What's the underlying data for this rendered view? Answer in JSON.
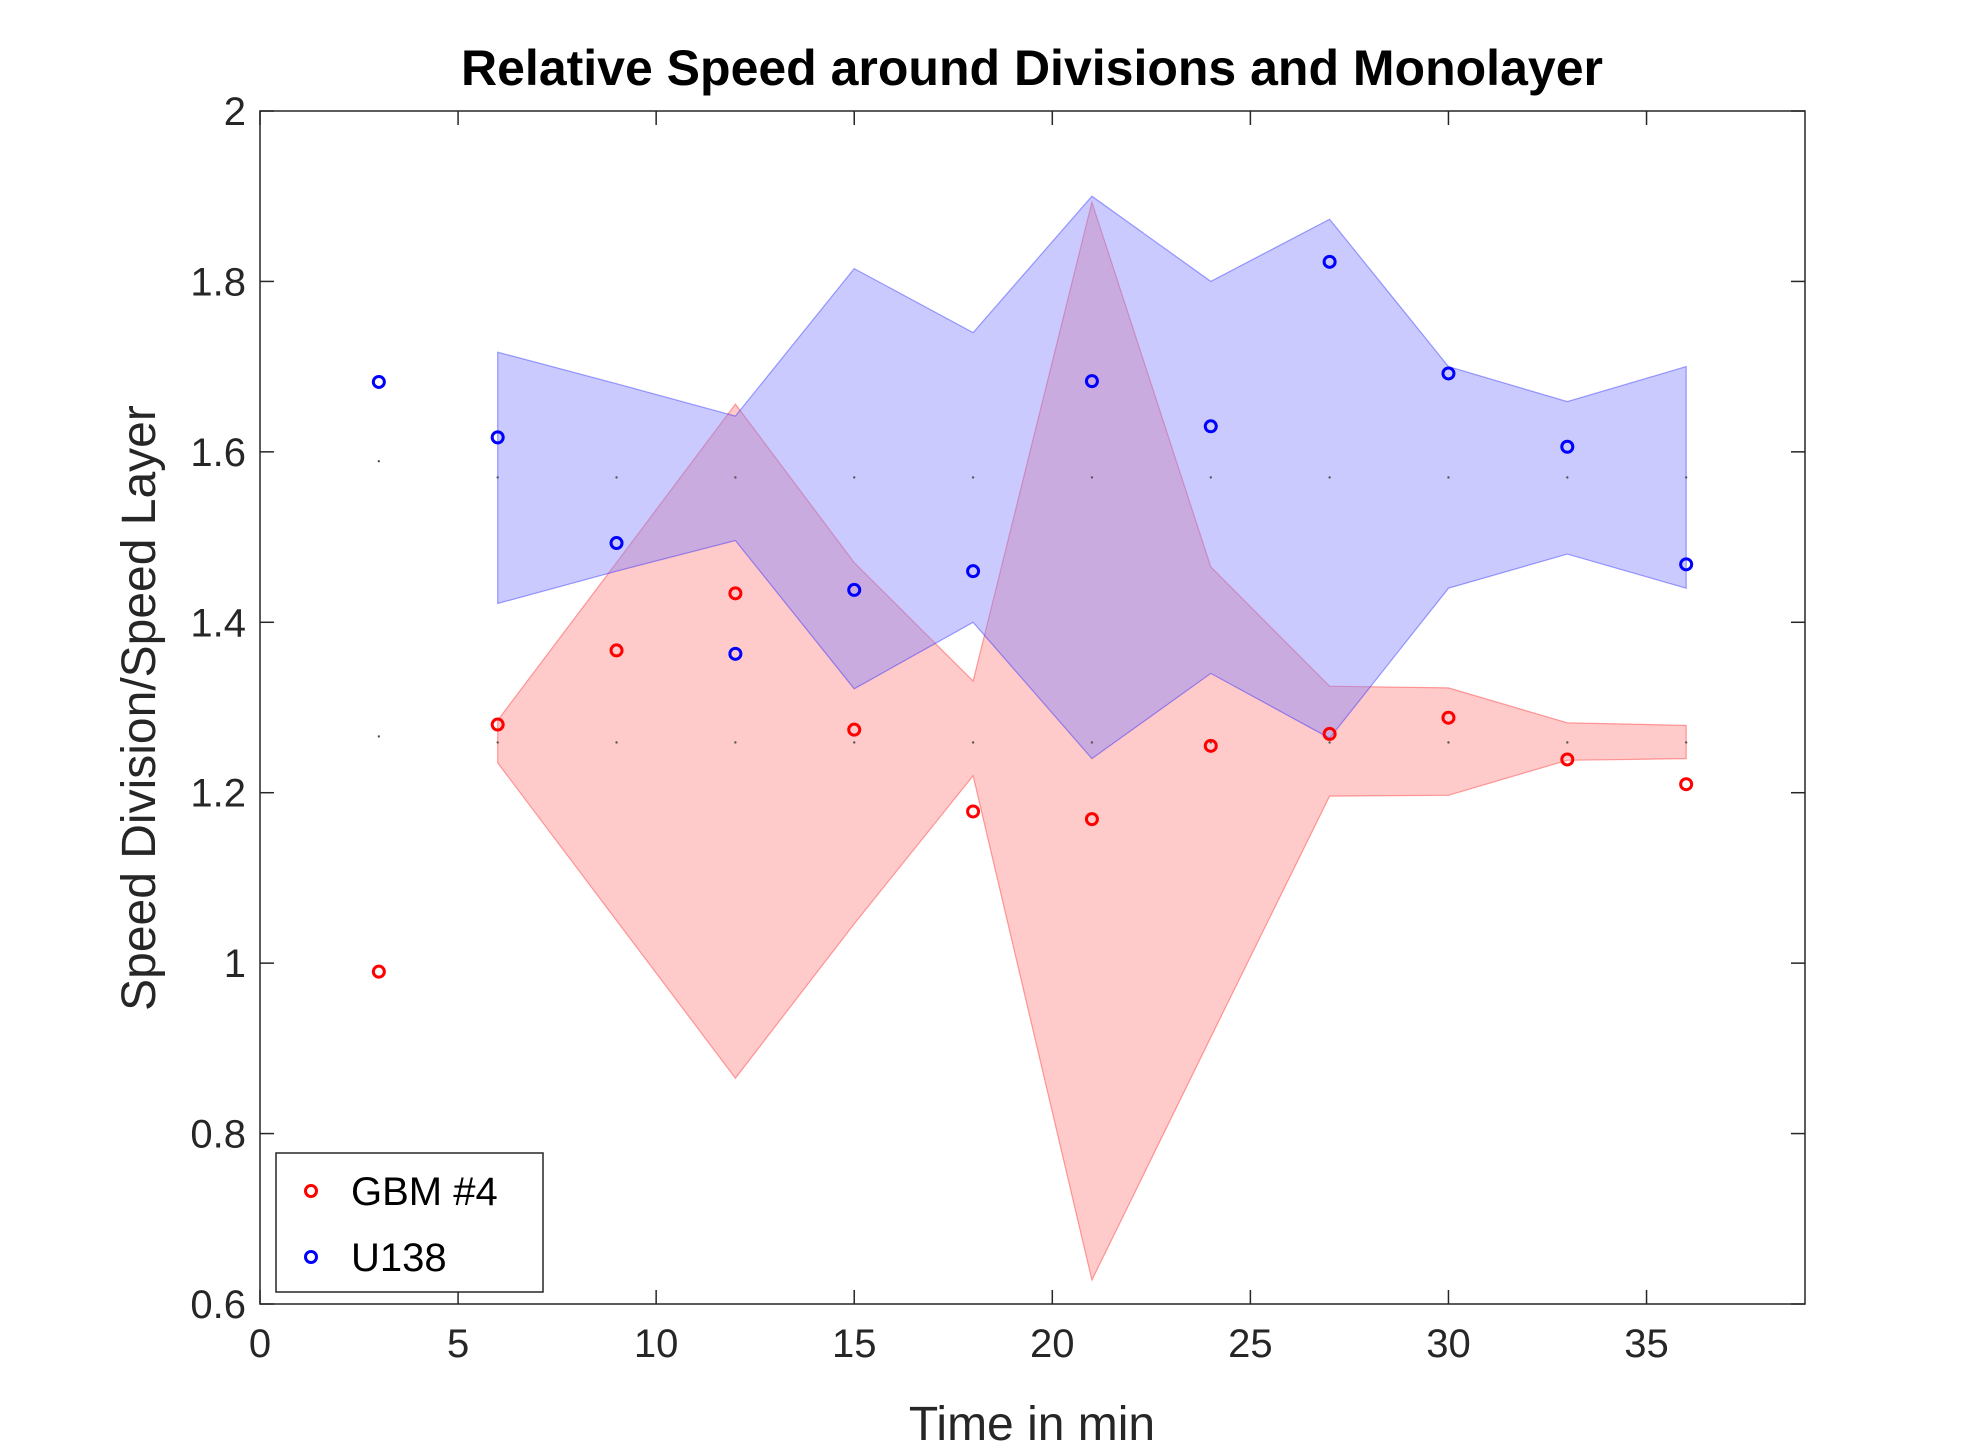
{
  "chart_data": {
    "type": "scatter",
    "title": "Relative Speed around Divisions and Monolayer",
    "xlabel": "Time in min",
    "ylabel": "Speed Division/Speed Layer",
    "xlim": [
      0,
      39
    ],
    "ylim": [
      0.6,
      2
    ],
    "xticks": [
      0,
      5,
      10,
      15,
      20,
      25,
      30,
      35
    ],
    "yticks": [
      0.6,
      0.8,
      1,
      1.2,
      1.4,
      1.6,
      1.8,
      2
    ],
    "xtick_labels": [
      "0",
      "5",
      "10",
      "15",
      "20",
      "25",
      "30",
      "35"
    ],
    "ytick_labels": [
      "0.6",
      "0.8",
      "1",
      "1.2",
      "1.4",
      "1.6",
      "1.8",
      "2"
    ],
    "grid": false,
    "legend_position": "bottom-left",
    "series": [
      {
        "name": "GBM #4",
        "color": "#ff0000",
        "fill_color": "#ff8080",
        "x": [
          3,
          6,
          9,
          12,
          15,
          18,
          21,
          24,
          27,
          30,
          33,
          36
        ],
        "y": [
          0.99,
          1.28,
          1.367,
          1.434,
          1.274,
          1.178,
          1.169,
          1.255,
          1.269,
          1.288,
          1.239,
          1.21
        ],
        "band_x": [
          6,
          9,
          12,
          15,
          18,
          21,
          24,
          27,
          30,
          33,
          36
        ],
        "band_upper": [
          1.285,
          1.47,
          1.656,
          1.47,
          1.331,
          1.893,
          1.465,
          1.325,
          1.323,
          1.282,
          1.279
        ],
        "band_lower": [
          1.235,
          1.05,
          0.865,
          1.046,
          1.22,
          0.628,
          0.913,
          1.196,
          1.197,
          1.238,
          1.24
        ],
        "center_dots": [
          1.266,
          1.259,
          1.259,
          1.259,
          1.259,
          1.259,
          1.259,
          1.259,
          1.259,
          1.259,
          1.259,
          1.259
        ]
      },
      {
        "name": "U138",
        "color": "#0000ff",
        "fill_color": "#8080ff",
        "x": [
          3,
          6,
          9,
          12,
          15,
          18,
          21,
          24,
          27,
          30,
          33,
          36
        ],
        "y": [
          1.682,
          1.617,
          1.493,
          1.363,
          1.438,
          1.46,
          1.683,
          1.63,
          1.823,
          1.692,
          1.606,
          1.468
        ],
        "band_x": [
          6,
          9,
          12,
          15,
          18,
          21,
          24,
          27,
          30,
          33,
          36
        ],
        "band_upper": [
          1.717,
          1.68,
          1.642,
          1.815,
          1.74,
          1.9,
          1.8,
          1.873,
          1.7,
          1.659,
          1.7
        ],
        "band_lower": [
          1.422,
          1.46,
          1.496,
          1.322,
          1.4,
          1.24,
          1.34,
          1.264,
          1.44,
          1.48,
          1.44
        ],
        "center_dots": [
          1.589,
          1.57,
          1.57,
          1.57,
          1.57,
          1.57,
          1.57,
          1.57,
          1.57,
          1.57,
          1.57,
          1.57
        ]
      }
    ]
  }
}
